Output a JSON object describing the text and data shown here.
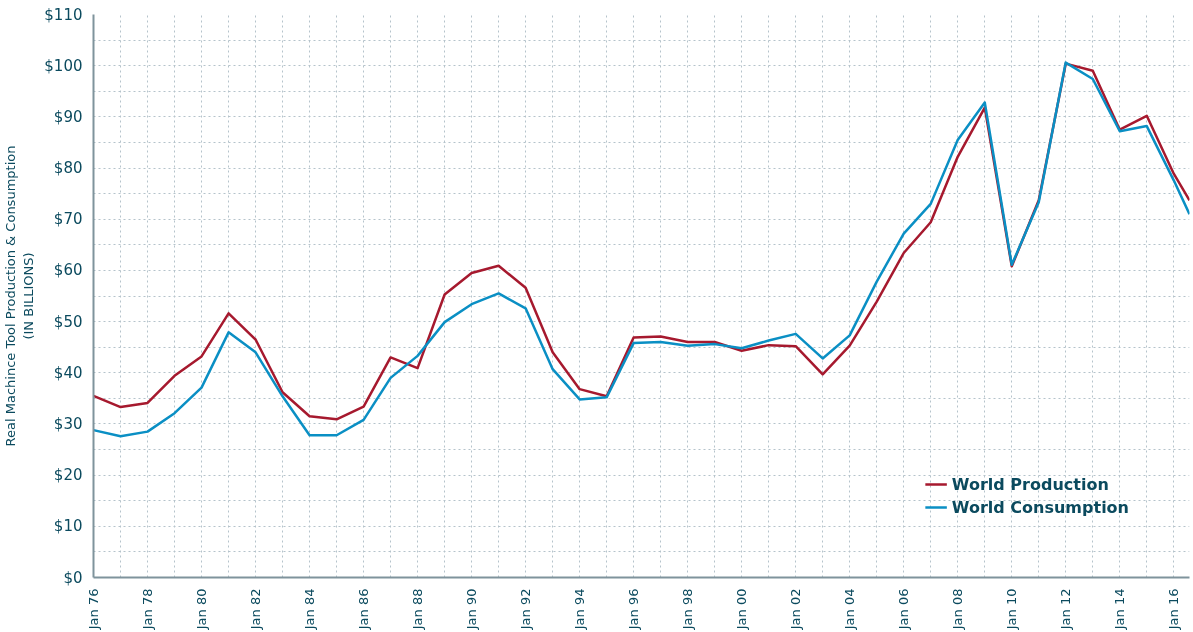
{
  "chart_data": {
    "type": "line",
    "ylabel": "Real Machince Tool Production & Consumption\n(IN BILLIONS)",
    "x": [
      "1976-01",
      "1977-01",
      "1978-01",
      "1979-01",
      "1980-01",
      "1981-01",
      "1982-01",
      "1983-01",
      "1984-01",
      "1985-01",
      "1986-01",
      "1987-01",
      "1988-01",
      "1989-01",
      "1990-01",
      "1991-01",
      "1992-01",
      "1993-01",
      "1994-01",
      "1995-01",
      "1996-01",
      "1997-01",
      "1998-01",
      "1999-01",
      "2000-01",
      "2001-01",
      "2002-01",
      "2003-01",
      "2004-01",
      "2005-01",
      "2006-01",
      "2007-01",
      "2008-01",
      "2009-01",
      "2010-01",
      "2011-01",
      "2012-01",
      "2013-01",
      "2014-01",
      "2015-01",
      "2016-01",
      "2016-08"
    ],
    "series": [
      {
        "name": "World Production",
        "color": "#a6192e",
        "values": [
          35.5,
          33.3,
          34.1,
          39.4,
          43.2,
          51.6,
          46.5,
          36.2,
          31.5,
          30.9,
          33.4,
          43.0,
          40.9,
          55.3,
          59.5,
          60.9,
          56.6,
          44.0,
          36.8,
          35.4,
          46.9,
          47.1,
          46.0,
          46.0,
          44.3,
          45.4,
          45.2,
          39.7,
          45.3,
          53.9,
          63.4,
          69.4,
          82.2,
          91.8,
          60.8,
          73.7,
          100.4,
          99.0,
          87.5,
          90.2,
          78.9,
          73.7
        ]
      },
      {
        "name": "World Consumption",
        "color": "#0a8fc4",
        "values": [
          28.8,
          27.6,
          28.5,
          32.1,
          37.1,
          47.9,
          44.0,
          35.4,
          27.8,
          27.8,
          30.8,
          39.0,
          43.3,
          49.9,
          53.4,
          55.5,
          52.6,
          40.7,
          34.8,
          35.2,
          45.8,
          46.0,
          45.3,
          45.6,
          44.8,
          46.3,
          47.6,
          42.8,
          47.3,
          57.8,
          67.2,
          73.0,
          85.5,
          92.8,
          61.1,
          73.3,
          100.6,
          97.4,
          87.2,
          88.2,
          77.6,
          71.0
        ]
      }
    ],
    "xlim": [
      "1976-01",
      "2016-08"
    ],
    "xticks": [
      {
        "value": "1976-01",
        "label": "Jan 76"
      },
      {
        "value": "1977-01",
        "label": null
      },
      {
        "value": "1978-01",
        "label": "Jan 78"
      },
      {
        "value": "1979-01",
        "label": null
      },
      {
        "value": "1980-01",
        "label": "Jan 80"
      },
      {
        "value": "1981-01",
        "label": null
      },
      {
        "value": "1982-01",
        "label": "Jan 82"
      },
      {
        "value": "1983-01",
        "label": null
      },
      {
        "value": "1984-01",
        "label": "Jan 84"
      },
      {
        "value": "1985-01",
        "label": null
      },
      {
        "value": "1986-01",
        "label": "Jan 86"
      },
      {
        "value": "1987-01",
        "label": null
      },
      {
        "value": "1988-01",
        "label": "Jan 88"
      },
      {
        "value": "1989-01",
        "label": null
      },
      {
        "value": "1990-01",
        "label": "Jan 90"
      },
      {
        "value": "1991-01",
        "label": null
      },
      {
        "value": "1992-01",
        "label": "Jan 92"
      },
      {
        "value": "1993-01",
        "label": null
      },
      {
        "value": "1994-01",
        "label": "Jan 94"
      },
      {
        "value": "1995-01",
        "label": null
      },
      {
        "value": "1996-01",
        "label": "Jan 96"
      },
      {
        "value": "1997-01",
        "label": null
      },
      {
        "value": "1998-01",
        "label": "Jan 98"
      },
      {
        "value": "1999-01",
        "label": null
      },
      {
        "value": "2000-01",
        "label": "Jan 00"
      },
      {
        "value": "2001-01",
        "label": null
      },
      {
        "value": "2002-01",
        "label": "Jan 02"
      },
      {
        "value": "2003-01",
        "label": null
      },
      {
        "value": "2004-01",
        "label": "Jan 04"
      },
      {
        "value": "2005-01",
        "label": null
      },
      {
        "value": "2006-01",
        "label": "Jan 06"
      },
      {
        "value": "2007-01",
        "label": null
      },
      {
        "value": "2008-01",
        "label": "Jan 08"
      },
      {
        "value": "2009-01",
        "label": null
      },
      {
        "value": "2010-01",
        "label": "Jan 10"
      },
      {
        "value": "2011-01",
        "label": null
      },
      {
        "value": "2012-01",
        "label": "Jan 12"
      },
      {
        "value": "2013-01",
        "label": null
      },
      {
        "value": "2014-01",
        "label": "Jan 14"
      },
      {
        "value": "2015-01",
        "label": null
      },
      {
        "value": "2016-01",
        "label": "Jan 16"
      }
    ],
    "ylim": [
      0,
      110
    ],
    "yticks": [
      {
        "value": 0,
        "label": "$0"
      },
      {
        "value": 5,
        "label": null
      },
      {
        "value": 10,
        "label": "$10"
      },
      {
        "value": 15,
        "label": null
      },
      {
        "value": 20,
        "label": "$20"
      },
      {
        "value": 25,
        "label": null
      },
      {
        "value": 30,
        "label": "$30"
      },
      {
        "value": 35,
        "label": null
      },
      {
        "value": 40,
        "label": "$40"
      },
      {
        "value": 45,
        "label": null
      },
      {
        "value": 50,
        "label": "$50"
      },
      {
        "value": 55,
        "label": null
      },
      {
        "value": 60,
        "label": "$60"
      },
      {
        "value": 65,
        "label": null
      },
      {
        "value": 70,
        "label": "$70"
      },
      {
        "value": 75,
        "label": null
      },
      {
        "value": 80,
        "label": "$80"
      },
      {
        "value": 85,
        "label": null
      },
      {
        "value": 90,
        "label": "$90"
      },
      {
        "value": 95,
        "label": null
      },
      {
        "value": 100,
        "label": "$100"
      },
      {
        "value": 105,
        "label": null
      },
      {
        "value": 110,
        "label": "$110"
      }
    ],
    "grid": true,
    "legend": "bottom right",
    "marker": "none",
    "line_style": "solid"
  }
}
